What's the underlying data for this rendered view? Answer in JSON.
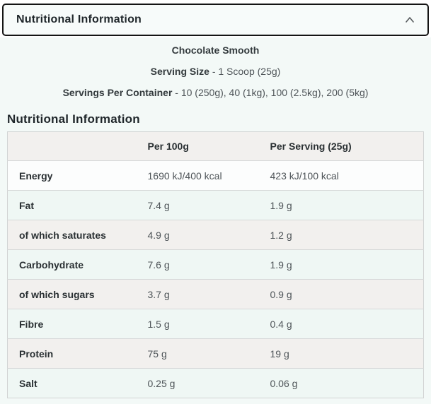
{
  "accordion": {
    "title": "Nutritional Information",
    "chevron_icon": "chevron-up"
  },
  "product": {
    "name": "Chocolate Smooth",
    "serving_size_label": "Serving Size",
    "serving_size_value": "- 1 Scoop (25g)",
    "servings_per_container_label": "Servings Per Container",
    "servings_per_container_value": "- 10 (250g), 40 (1kg), 100 (2.5kg), 200 (5kg)"
  },
  "table": {
    "heading": "Nutritional Information",
    "columns": [
      "",
      "Per 100g",
      "Per Serving (25g)"
    ],
    "rows": [
      {
        "label": "Energy",
        "per_100g": "1690 kJ/400 kcal",
        "per_serving": "423 kJ/100 kcal"
      },
      {
        "label": "Fat",
        "per_100g": "7.4 g",
        "per_serving": "1.9 g"
      },
      {
        "label": "of which saturates",
        "per_100g": "4.9 g",
        "per_serving": "1.2 g"
      },
      {
        "label": "Carbohydrate",
        "per_100g": "7.6 g",
        "per_serving": "1.9 g"
      },
      {
        "label": "of which sugars",
        "per_100g": "3.7 g",
        "per_serving": "0.9 g"
      },
      {
        "label": "Fibre",
        "per_100g": "1.5 g",
        "per_serving": "0.4 g"
      },
      {
        "label": "Protein",
        "per_100g": "75 g",
        "per_serving": "19 g"
      },
      {
        "label": "Salt",
        "per_100g": "0.25 g",
        "per_serving": "0.06 g"
      }
    ]
  },
  "colors": {
    "header_border": "#141414",
    "panel_background": "#f3f9f7",
    "row_tint_green": "#eff7f4",
    "row_tint_beige": "#f2f0ee",
    "text_dark": "#2a3033",
    "text_body": "#4e5458"
  }
}
